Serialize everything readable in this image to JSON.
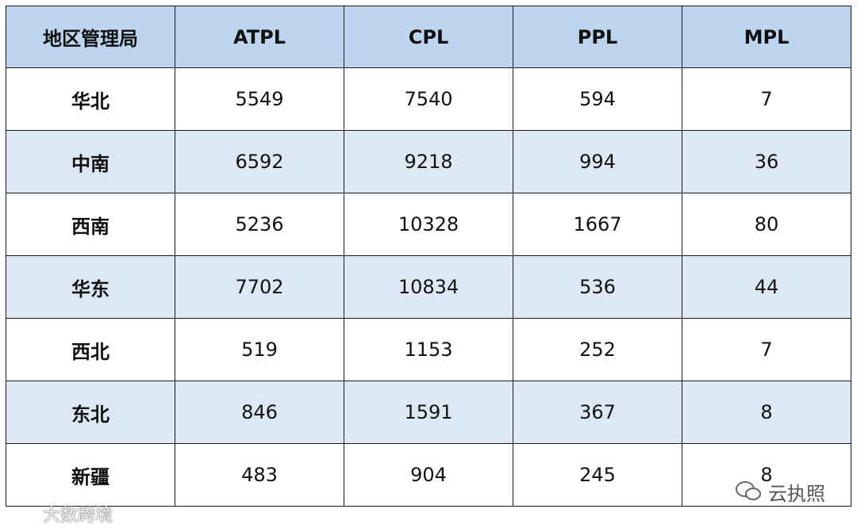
{
  "table": {
    "header": [
      "地区管理局",
      "ATPL",
      "CPL",
      "PPL",
      "MPL"
    ],
    "rows": [
      [
        "华北",
        5549,
        7540,
        594,
        7
      ],
      [
        "中南",
        6592,
        9218,
        994,
        36
      ],
      [
        "西南",
        5236,
        10328,
        1667,
        80
      ],
      [
        "华东",
        7702,
        10834,
        536,
        44
      ],
      [
        "西北",
        519,
        1153,
        252,
        7
      ],
      [
        "东北",
        846,
        1591,
        367,
        8
      ],
      [
        "新疆",
        483,
        904,
        245,
        8
      ]
    ]
  },
  "watermarks": [
    "云执照",
    "大数跨境"
  ]
}
